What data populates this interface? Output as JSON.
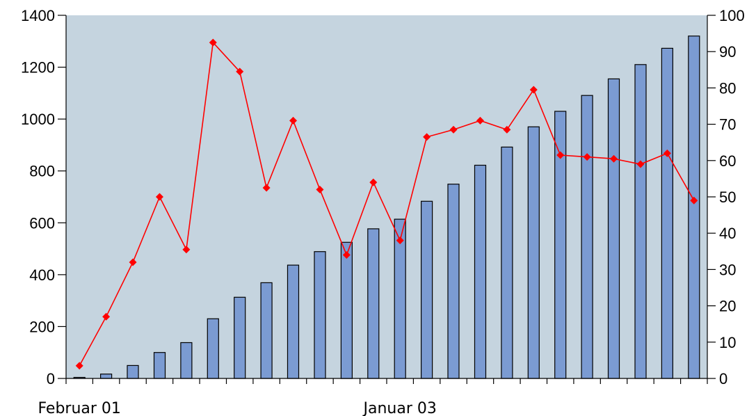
{
  "chart_data": {
    "type": "bar+line",
    "title": "",
    "xlabel": "",
    "ylabel": "",
    "x_tick_labels": [
      {
        "index": 0,
        "label": "Februar 01"
      },
      {
        "index": 12,
        "label": "Januar 03"
      }
    ],
    "y_left": {
      "range": [
        0,
        1400
      ],
      "ticks": [
        0,
        200,
        400,
        600,
        800,
        1000,
        1200,
        1400
      ]
    },
    "y_right": {
      "range": [
        0,
        100
      ],
      "ticks": [
        0,
        10,
        20,
        30,
        40,
        50,
        60,
        70,
        80,
        90,
        100
      ]
    },
    "grid": false,
    "legend": "none",
    "series": [
      {
        "type": "bar",
        "axis": "left",
        "color": "#7b9bd2",
        "values": [
          4,
          17,
          50,
          100,
          138,
          230,
          313,
          369,
          437,
          489,
          525,
          577,
          614,
          683,
          749,
          822,
          892,
          970,
          1030,
          1091,
          1155,
          1210,
          1273,
          1320
        ]
      },
      {
        "type": "line",
        "axis": "right",
        "color": "#ff0000",
        "values": [
          3.5,
          17,
          32,
          50,
          35.5,
          92.5,
          84.5,
          52.5,
          71,
          52,
          34,
          54,
          38,
          66.5,
          68.5,
          71,
          68.5,
          79.5,
          61.5,
          61,
          60.5,
          59,
          62,
          49
        ]
      }
    ],
    "colors": {
      "plot_background": "#c5d4df",
      "bar_fill": "#7b9bd2",
      "line": "#ff0000"
    }
  }
}
